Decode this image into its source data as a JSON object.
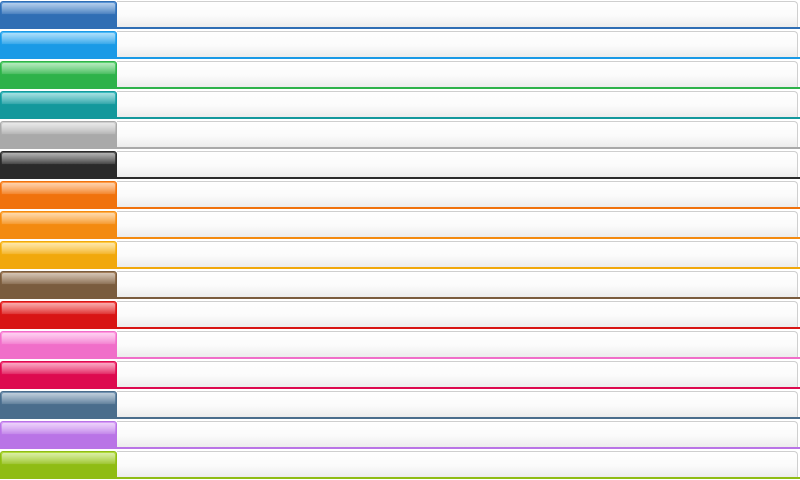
{
  "tab_bars": [
    {
      "tab_label": "",
      "panel_text": "",
      "color": "#2f6eb4",
      "tab_top": "#5b95d6"
    },
    {
      "tab_label": "",
      "panel_text": "",
      "color": "#1a9ae6",
      "tab_top": "#4cb9f7"
    },
    {
      "tab_label": "",
      "panel_text": "",
      "color": "#2eb24a",
      "tab_top": "#5fd371"
    },
    {
      "tab_label": "",
      "panel_text": "",
      "color": "#14989c",
      "tab_top": "#3dbcc0"
    },
    {
      "tab_label": "",
      "panel_text": "",
      "color": "#a9a9a9",
      "tab_top": "#cfcfcf"
    },
    {
      "tab_label": "",
      "panel_text": "",
      "color": "#2a2a2a",
      "tab_top": "#5a5a5a"
    },
    {
      "tab_label": "",
      "panel_text": "",
      "color": "#f0720d",
      "tab_top": "#ff9d4a"
    },
    {
      "tab_label": "",
      "panel_text": "",
      "color": "#f38a10",
      "tab_top": "#ffae4a"
    },
    {
      "tab_label": "",
      "panel_text": "",
      "color": "#f1a80c",
      "tab_top": "#ffcb45"
    },
    {
      "tab_label": "",
      "panel_text": "",
      "color": "#7a5c3e",
      "tab_top": "#a4805c"
    },
    {
      "tab_label": "",
      "panel_text": "",
      "color": "#d81515",
      "tab_top": "#f34848"
    },
    {
      "tab_label": "",
      "panel_text": "",
      "color": "#f06ec9",
      "tab_top": "#ff9be0"
    },
    {
      "tab_label": "",
      "panel_text": "",
      "color": "#dd0a4f",
      "tab_top": "#f5427d"
    },
    {
      "tab_label": "",
      "panel_text": "",
      "color": "#4a6d8c",
      "tab_top": "#7394b2"
    },
    {
      "tab_label": "",
      "panel_text": "",
      "color": "#b974e6",
      "tab_top": "#d7a0f7"
    },
    {
      "tab_label": "",
      "panel_text": "",
      "color": "#8fbc14",
      "tab_top": "#b1db3d"
    }
  ]
}
